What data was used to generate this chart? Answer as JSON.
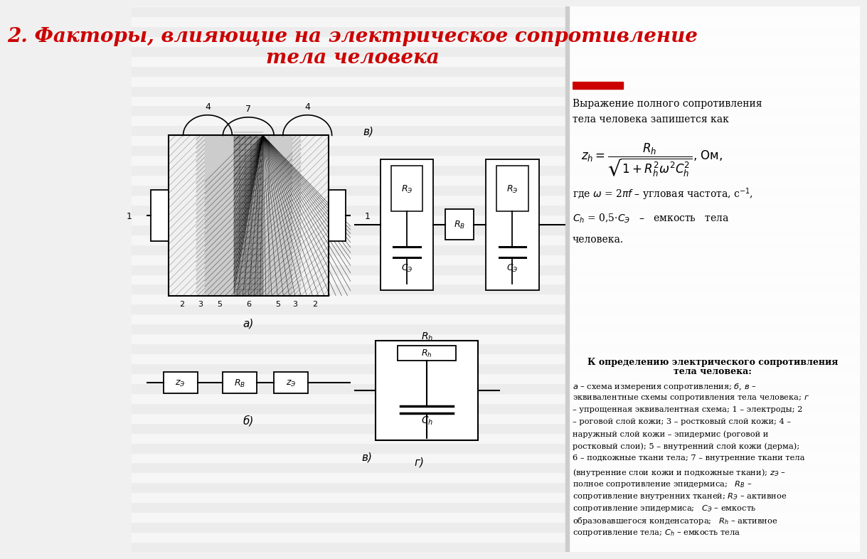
{
  "title_line1": "2. Факторы, влияющие на электрическое сопротивление",
  "title_line2": "тела человека",
  "title_color": "#cc0000",
  "bg_light": "#f0f0f0",
  "bg_dark": "#e4e4e4",
  "white": "#ffffff",
  "black": "#000000",
  "red_bar": "#cc0000",
  "stripe_count": 55,
  "label_a": "а)",
  "label_b": "б)",
  "label_v": "в)",
  "label_g": "г)"
}
